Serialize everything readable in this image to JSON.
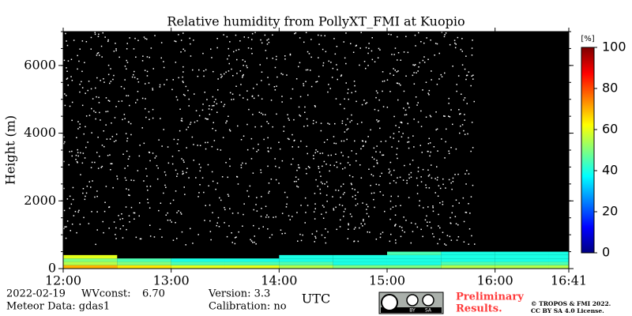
{
  "chart_data": {
    "type": "heatmap",
    "title": "Relative humidity from PollyXT_FMI at Kuopio",
    "xlabel": "UTC",
    "ylabel": "Height (m)",
    "x_edges": [
      12.0,
      12.5,
      13.0,
      13.5,
      14.0,
      14.5,
      15.0,
      15.5,
      16.0,
      16.5,
      16.683
    ],
    "y_edges": [
      0,
      100,
      200,
      300,
      400,
      500,
      600
    ],
    "z": [
      [
        70,
        65,
        60,
        60,
        55,
        50,
        50,
        55,
        55,
        55
      ],
      [
        55,
        50,
        45,
        45,
        45,
        40,
        40,
        45,
        45,
        45
      ],
      [
        50,
        45,
        40,
        40,
        40,
        40,
        40,
        40,
        40,
        40
      ],
      [
        60,
        null,
        null,
        null,
        40,
        40,
        40,
        40,
        40,
        40
      ],
      [
        null,
        null,
        null,
        null,
        null,
        null,
        45,
        40,
        40,
        40
      ],
      [
        null,
        null,
        null,
        null,
        null,
        null,
        null,
        null,
        null,
        null
      ]
    ],
    "xlim": [
      12.0,
      16.683
    ],
    "xticks": [
      {
        "value": 12,
        "label": "12:00"
      },
      {
        "value": 13,
        "label": "13:00"
      },
      {
        "value": 14,
        "label": "14:00"
      },
      {
        "value": 15,
        "label": "15:00"
      },
      {
        "value": 16,
        "label": "16:00"
      },
      {
        "value": 16.683,
        "label": "16:41"
      }
    ],
    "ylim": [
      0,
      7000
    ],
    "yticks": [
      0,
      2000,
      4000,
      6000
    ],
    "colorbar": {
      "label": "[%]",
      "clim": [
        0,
        100
      ],
      "ticks": [
        0,
        20,
        40,
        60,
        80,
        100
      ],
      "colormap": "jet"
    },
    "background": "#000000"
  },
  "footer": {
    "date": "2022-02-19",
    "wvconst_label": "WVconst:",
    "wvconst_value": "6.70",
    "meteor": "Meteor Data: gdas1",
    "version": "Version: 3.3",
    "calibration": "Calibration: no",
    "badge": [
      "BY",
      "SA"
    ],
    "preliminary": [
      "Preliminary",
      "Results."
    ],
    "copyright": [
      "© TROPOS & FMI 2022.",
      "CC BY SA 4.0 License."
    ]
  }
}
